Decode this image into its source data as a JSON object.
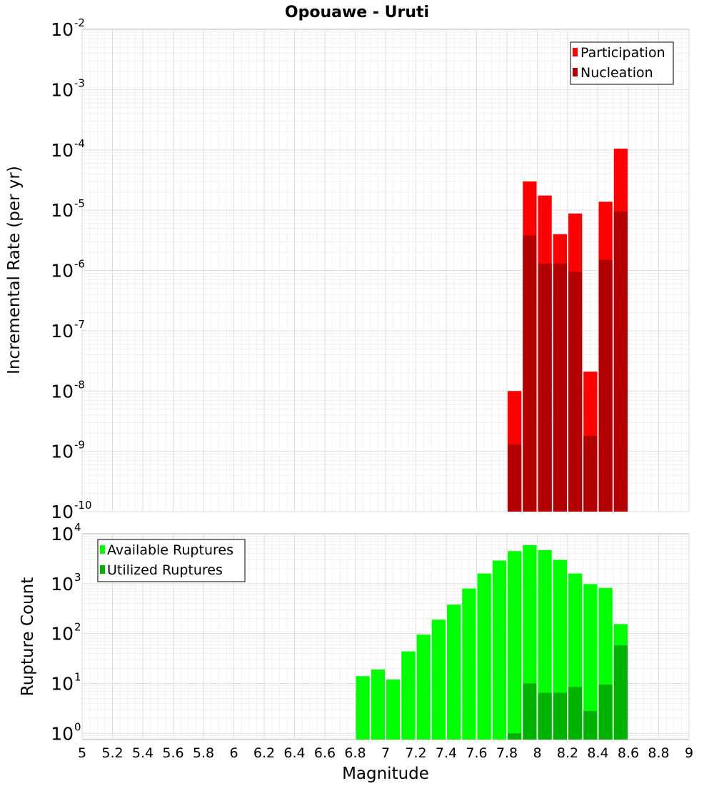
{
  "chart_data": {
    "title": "Opouawe - Uruti",
    "xlabel": "Magnitude",
    "xlim": [
      5,
      9
    ],
    "xticks": [
      "5",
      "5.2",
      "5.4",
      "5.6",
      "5.8",
      "6",
      "6.2",
      "6.4",
      "6.6",
      "6.8",
      "7",
      "7.2",
      "7.4",
      "7.6",
      "7.8",
      "8",
      "8.2",
      "8.4",
      "8.6",
      "8.8",
      "9"
    ],
    "panels": [
      {
        "type": "bar",
        "ylabel": "Incremental Rate (per yr)",
        "yscale": "log",
        "ylim": [
          1e-10,
          0.01
        ],
        "yticks": [
          {
            "base": "10",
            "exp": "-2",
            "value": 0.01
          },
          {
            "base": "10",
            "exp": "-3",
            "value": 0.001
          },
          {
            "base": "10",
            "exp": "-4",
            "value": 0.0001
          },
          {
            "base": "10",
            "exp": "-5",
            "value": 1e-05
          },
          {
            "base": "10",
            "exp": "-6",
            "value": 1e-06
          },
          {
            "base": "10",
            "exp": "-7",
            "value": 1e-07
          },
          {
            "base": "10",
            "exp": "-8",
            "value": 1e-08
          },
          {
            "base": "10",
            "exp": "-9",
            "value": 1e-09
          },
          {
            "base": "10",
            "exp": "-10",
            "value": 1e-10
          }
        ],
        "legend_position": "top-right",
        "grid": true,
        "bin_width": 0.1,
        "series": [
          {
            "name": "Participation",
            "color": "#ff0000",
            "x": [
              7.85,
              7.95,
              8.05,
              8.15,
              8.25,
              8.35,
              8.45,
              8.55
            ],
            "values": [
              1e-08,
              3e-05,
              1.75e-05,
              4e-06,
              8.8e-06,
              2.1e-08,
              1.38e-05,
              0.000105
            ]
          },
          {
            "name": "Nucleation",
            "color": "#b20000",
            "x": [
              7.85,
              7.95,
              8.05,
              8.15,
              8.25,
              8.35,
              8.45,
              8.55
            ],
            "values": [
              1.3e-09,
              3.8e-06,
              1.3e-06,
              1.3e-06,
              9.5e-07,
              1.8e-09,
              1.5e-06,
              9.5e-06
            ]
          }
        ]
      },
      {
        "type": "bar",
        "ylabel": "Rupture Count",
        "yscale": "log",
        "ylim": [
          0.75,
          10000
        ],
        "yticks": [
          {
            "base": "10",
            "exp": "4",
            "value": 10000
          },
          {
            "base": "10",
            "exp": "3",
            "value": 1000
          },
          {
            "base": "10",
            "exp": "2",
            "value": 100
          },
          {
            "base": "10",
            "exp": "1",
            "value": 10
          },
          {
            "base": "10",
            "exp": "0",
            "value": 1
          }
        ],
        "legend_position": "top-left",
        "grid": true,
        "bin_width": 0.1,
        "series": [
          {
            "name": "Available Ruptures",
            "color": "#00ff00",
            "x": [
              6.85,
              6.95,
              7.05,
              7.15,
              7.25,
              7.35,
              7.45,
              7.55,
              7.65,
              7.75,
              7.85,
              7.95,
              8.05,
              8.15,
              8.25,
              8.35,
              8.45,
              8.55
            ],
            "values": [
              14,
              19,
              12,
              44,
              95,
              190,
              380,
              800,
              1600,
              2900,
              4500,
              5900,
              4700,
              3000,
              1600,
              980,
              820,
              155
            ]
          },
          {
            "name": "Utilized Ruptures",
            "color": "#00b200",
            "x": [
              7.85,
              7.95,
              8.05,
              8.15,
              8.25,
              8.35,
              8.45,
              8.55
            ],
            "values": [
              1,
              10,
              6.5,
              6.5,
              8.5,
              2.8,
              9.5,
              58
            ]
          }
        ]
      }
    ]
  }
}
